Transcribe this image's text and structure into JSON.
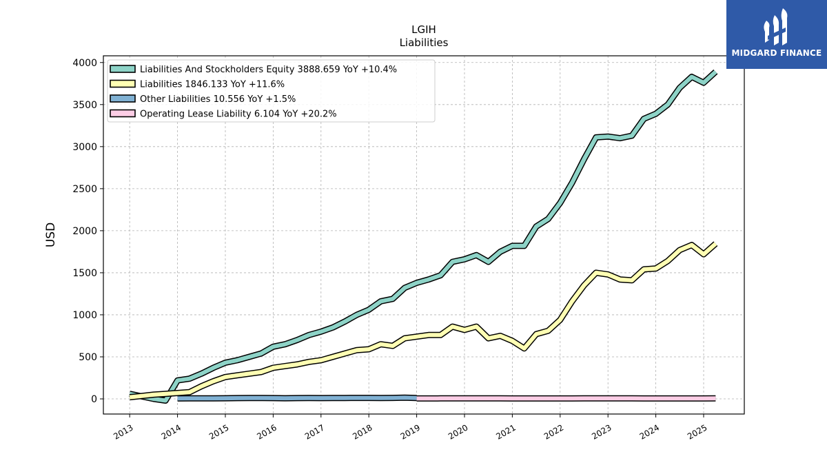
{
  "brand": {
    "name": "MIDGARD FINANCE",
    "color": "#2f5aa8"
  },
  "chart_data": {
    "type": "line",
    "title": "LGIH",
    "subtitle": "Liabilities",
    "ylabel": "USD",
    "xlabel": "",
    "ylim": [
      -180,
      4080
    ],
    "xlim": [
      2012.45,
      2025.85
    ],
    "yticks": [
      0,
      500,
      1000,
      1500,
      2000,
      2500,
      3000,
      3500,
      4000
    ],
    "xticks": [
      "2013",
      "2014",
      "2015",
      "2016",
      "2017",
      "2018",
      "2019",
      "2020",
      "2021",
      "2022",
      "2023",
      "2024",
      "2025"
    ],
    "grid": true,
    "legend_position": "top-left",
    "series": [
      {
        "name": "Liabilities And Stockholders Equity",
        "legend": "Liabilities And Stockholders Equity  3888.659 YoY +10.4%",
        "color": "#8dd3c7",
        "x": [
          2013.0,
          2013.25,
          2013.5,
          2013.75,
          2014.0,
          2014.25,
          2014.5,
          2014.75,
          2015.0,
          2015.25,
          2015.5,
          2015.75,
          2016.0,
          2016.25,
          2016.5,
          2016.75,
          2017.0,
          2017.25,
          2017.5,
          2017.75,
          2018.0,
          2018.25,
          2018.5,
          2018.75,
          2019.0,
          2019.25,
          2019.5,
          2019.75,
          2020.0,
          2020.25,
          2020.5,
          2020.75,
          2021.0,
          2021.25,
          2021.5,
          2021.75,
          2022.0,
          2022.25,
          2022.5,
          2022.75,
          2023.0,
          2023.25,
          2023.5,
          2023.75,
          2024.0,
          2024.25,
          2024.5,
          2024.75,
          2025.0,
          2025.25
        ],
        "values": [
          60,
          30,
          0,
          -20,
          220,
          240,
          300,
          370,
          430,
          460,
          500,
          540,
          620,
          650,
          700,
          760,
          800,
          850,
          920,
          1000,
          1060,
          1160,
          1190,
          1320,
          1380,
          1420,
          1470,
          1630,
          1660,
          1710,
          1630,
          1750,
          1820,
          1820,
          2050,
          2140,
          2330,
          2570,
          2850,
          3110,
          3120,
          3100,
          3130,
          3330,
          3390,
          3500,
          3700,
          3830,
          3760,
          3890
        ]
      },
      {
        "name": "Liabilities",
        "legend": "Liabilities  1846.133 YoY +11.6%",
        "color": "#ffffb3",
        "x": [
          2013.0,
          2013.25,
          2013.5,
          2013.75,
          2014.0,
          2014.25,
          2014.5,
          2014.75,
          2015.0,
          2015.25,
          2015.5,
          2015.75,
          2016.0,
          2016.25,
          2016.5,
          2016.75,
          2017.0,
          2017.25,
          2017.5,
          2017.75,
          2018.0,
          2018.25,
          2018.5,
          2018.75,
          2019.0,
          2019.25,
          2019.5,
          2019.75,
          2020.0,
          2020.25,
          2020.5,
          2020.75,
          2021.0,
          2021.25,
          2021.5,
          2021.75,
          2022.0,
          2022.25,
          2022.5,
          2022.75,
          2023.0,
          2023.25,
          2023.5,
          2023.75,
          2024.0,
          2024.25,
          2024.5,
          2024.75,
          2025.0,
          2025.25
        ],
        "values": [
          20,
          35,
          50,
          60,
          70,
          80,
          150,
          210,
          260,
          280,
          300,
          320,
          370,
          390,
          410,
          440,
          460,
          500,
          540,
          580,
          590,
          650,
          630,
          720,
          740,
          760,
          760,
          860,
          820,
          860,
          720,
          750,
          690,
          600,
          770,
          810,
          940,
          1160,
          1350,
          1500,
          1480,
          1420,
          1410,
          1540,
          1550,
          1640,
          1770,
          1830,
          1720,
          1846
        ]
      },
      {
        "name": "Other Liabilities",
        "legend": "Other Liabilities  10.556 YoY +1.5%",
        "color": "#80b1d3",
        "x": [
          2014.0,
          2014.25,
          2014.5,
          2014.75,
          2015.0,
          2015.25,
          2015.5,
          2015.75,
          2016.0,
          2016.25,
          2016.5,
          2016.75,
          2017.0,
          2017.25,
          2017.5,
          2017.75,
          2018.0,
          2018.25,
          2018.5,
          2018.75,
          2019.0
        ],
        "values": [
          5,
          6,
          7,
          7,
          8,
          9,
          10,
          11,
          9,
          8,
          9,
          10,
          9,
          10,
          11,
          12,
          12,
          11,
          12,
          14,
          10.6
        ]
      },
      {
        "name": "Operating Lease Liability",
        "legend": "Operating Lease Liability  6.104 YoY +20.2%",
        "color": "#fccde5",
        "x": [
          2019.0,
          2019.25,
          2019.5,
          2019.75,
          2020.0,
          2020.25,
          2020.5,
          2020.75,
          2021.0,
          2021.25,
          2021.5,
          2021.75,
          2022.0,
          2022.25,
          2022.5,
          2022.75,
          2023.0,
          2023.25,
          2023.5,
          2023.75,
          2024.0,
          2024.25,
          2024.5,
          2024.75,
          2025.0,
          2025.25
        ],
        "values": [
          5,
          5,
          6,
          6,
          7,
          7,
          6,
          6,
          5,
          5,
          5,
          5,
          5,
          5,
          6,
          6,
          6,
          6,
          6,
          5,
          5,
          5,
          5,
          5,
          5,
          6.1
        ]
      }
    ]
  }
}
